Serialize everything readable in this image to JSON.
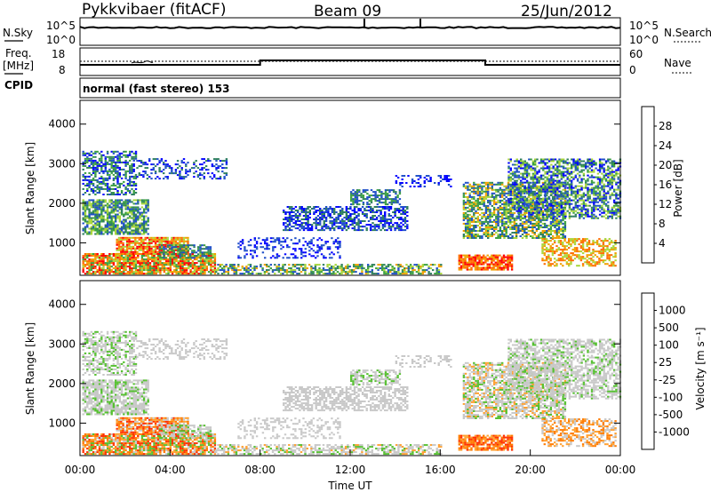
{
  "header": {
    "station": "Pykkvibaer (fitACF)",
    "beam": "Beam 09",
    "date": "25/Jun/2012"
  },
  "strip_labels": {
    "nsky": "N.Sky",
    "nsearch": "N.Search",
    "freq_top": "Freq.",
    "freq_unit": "[MHz]",
    "nave": "Nave",
    "cpid": "CPID",
    "cpid_value": "normal (fast stereo) 153"
  },
  "strip_ticks": {
    "nsky_left": [
      "10^5",
      "10^0"
    ],
    "nsky_right": [
      "10^5",
      "10^0"
    ],
    "freq_left": [
      "18",
      "8"
    ],
    "nave_right": [
      "60",
      "0"
    ]
  },
  "colors": {
    "power_scale": [
      "#0000ff",
      "#1f4fc8",
      "#2f7f5f",
      "#3aa040",
      "#a8d63c",
      "#f0a000",
      "#ff6a00",
      "#ff0000"
    ],
    "velocity_scale": [
      "#1a3fb0",
      "#2a6fa0",
      "#2f8a5f",
      "#55c030",
      "#c8c8c8",
      "#ffa030",
      "#ff7a00",
      "#ff3000",
      "#ff0000"
    ]
  },
  "chart_data": [
    {
      "type": "heatmap",
      "panel": "power",
      "xlabel": "Time UT",
      "ylabel": "Slant Range [km]",
      "colorbar_label": "Power [dB]",
      "x_ticks": [
        "00:00",
        "04:00",
        "08:00",
        "12:00",
        "16:00",
        "20:00",
        "00:00"
      ],
      "y_ticks": [
        1000,
        2000,
        3000,
        4000
      ],
      "colorbar_ticks": [
        4,
        8,
        12,
        16,
        20,
        24,
        28
      ],
      "xlim_hours": [
        0,
        24
      ],
      "ylim_km": [
        180,
        4600
      ]
    },
    {
      "type": "heatmap",
      "panel": "velocity",
      "xlabel": "Time UT",
      "ylabel": "Slant Range [km]",
      "colorbar_label": "Velocity [m s⁻¹]",
      "x_ticks": [
        "00:00",
        "04:00",
        "08:00",
        "12:00",
        "16:00",
        "20:00",
        "00:00"
      ],
      "y_ticks": [
        1000,
        2000,
        3000,
        4000
      ],
      "colorbar_ticks": [
        "1000",
        "500",
        "100",
        "25",
        "-25",
        "-100",
        "-500",
        "-1000"
      ],
      "xlim_hours": [
        0,
        24
      ],
      "ylim_km": [
        180,
        4600
      ]
    }
  ]
}
